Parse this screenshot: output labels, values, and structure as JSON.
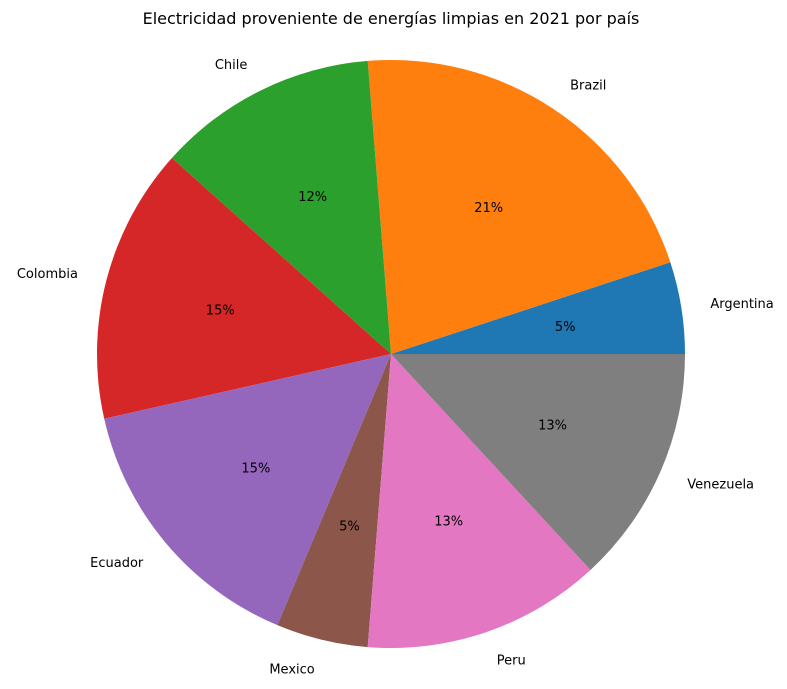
{
  "chart_data": {
    "type": "pie",
    "title": "Electricidad proveniente de energías limpias en 2021 por país",
    "categories": [
      "Argentina",
      "Brazil",
      "Chile",
      "Colombia",
      "Ecuador",
      "Mexico",
      "Peru",
      "Venezuela"
    ],
    "values": [
      5,
      21,
      12,
      15,
      15,
      5,
      13,
      13
    ],
    "value_labels": [
      "5%",
      "21%",
      "12%",
      "15%",
      "15%",
      "5%",
      "13%",
      "13%"
    ],
    "colors": [
      "#1f77b4",
      "#ff7f0e",
      "#2ca02c",
      "#d62728",
      "#9467bd",
      "#8c564b",
      "#e377c2",
      "#7f7f7f"
    ],
    "start_angle_deg": 0,
    "direction": "counterclockwise"
  }
}
